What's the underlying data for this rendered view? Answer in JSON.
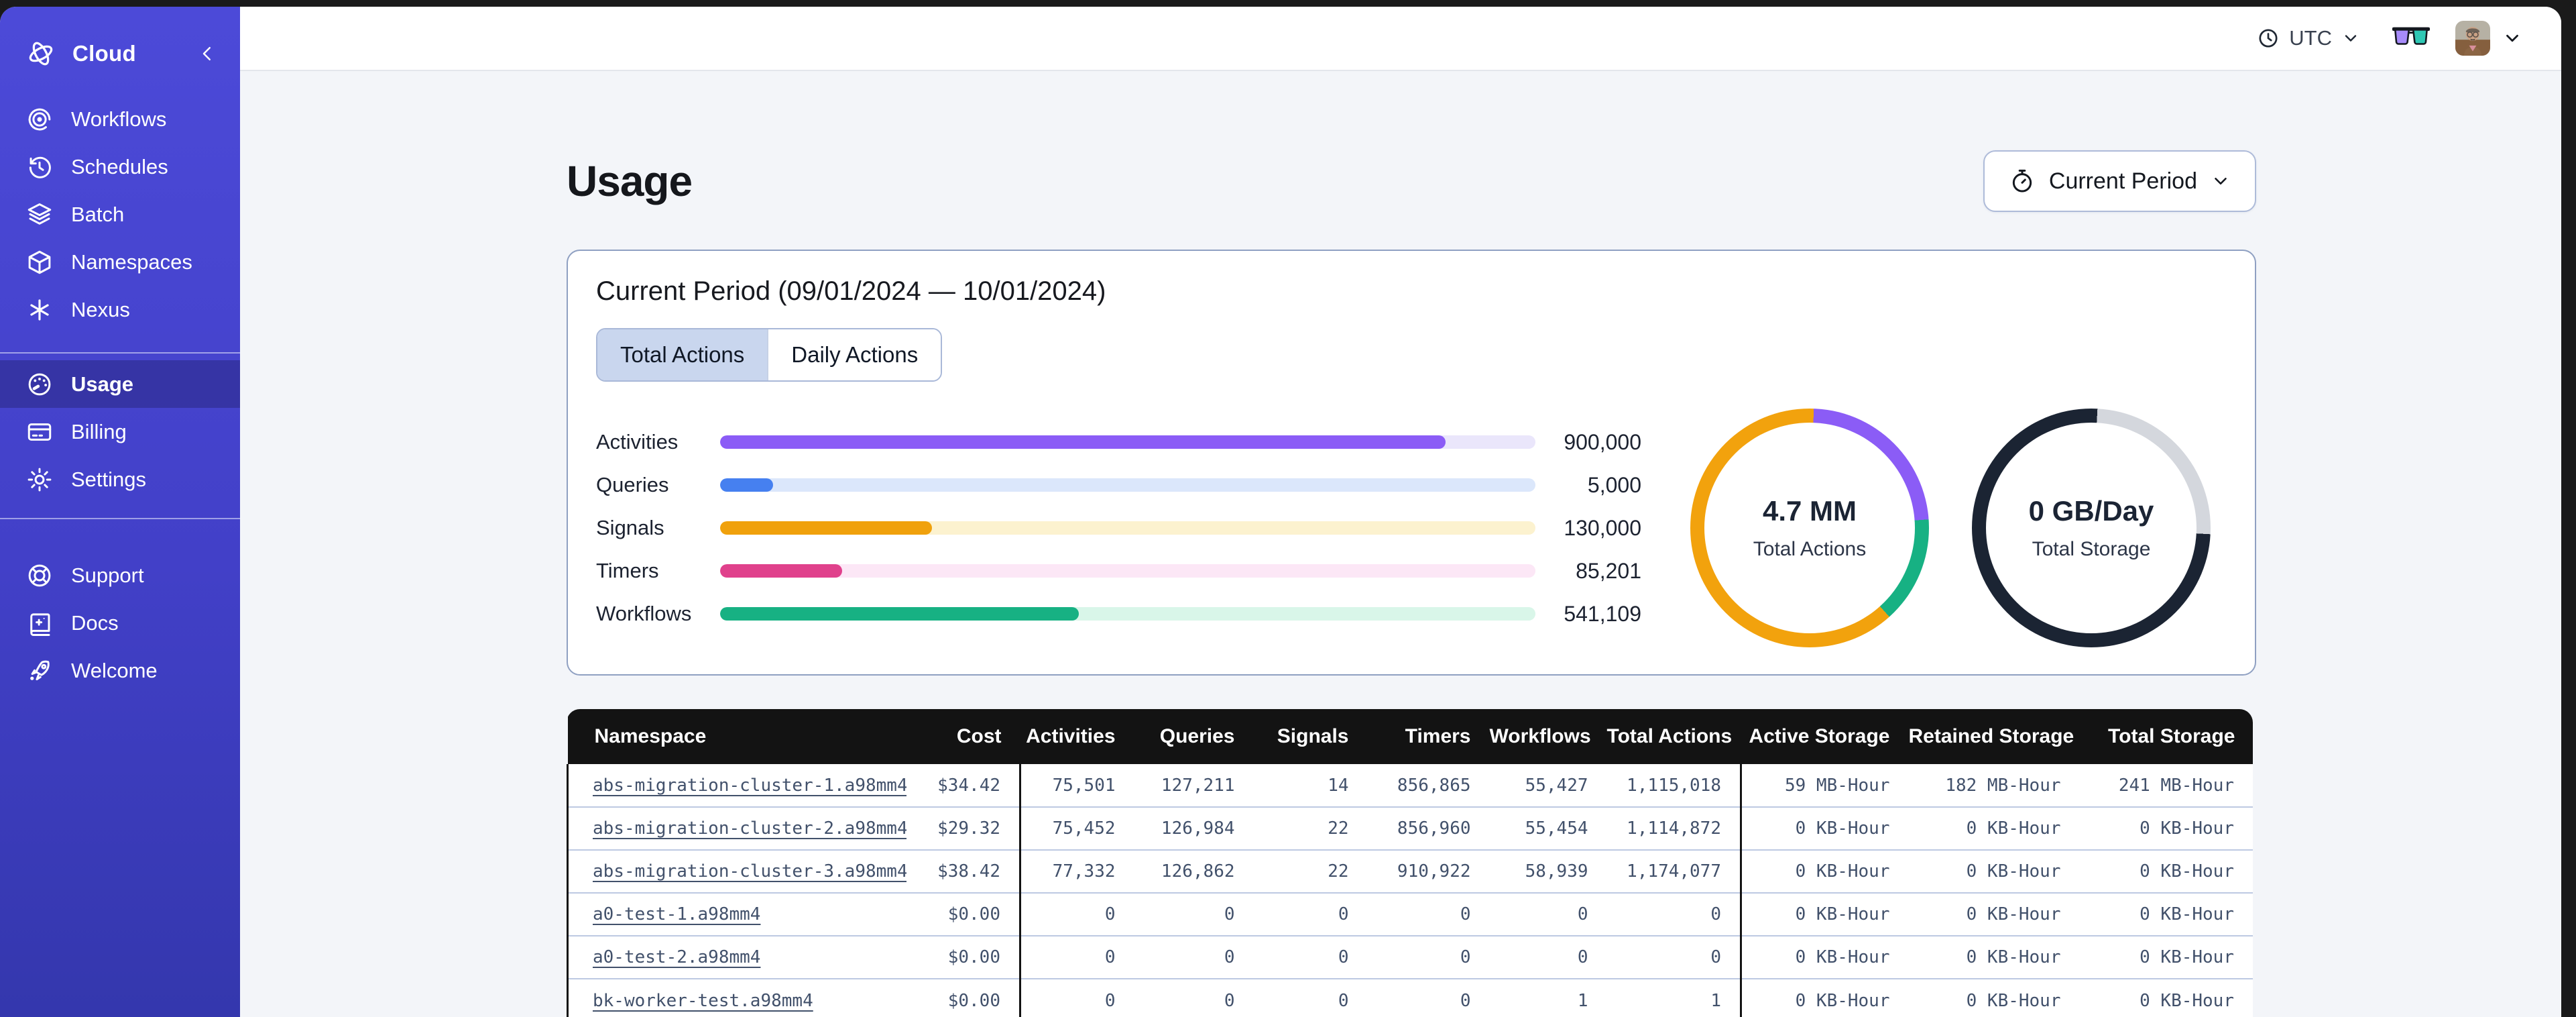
{
  "topbar": {
    "timezone": "UTC"
  },
  "sidebar": {
    "brand": {
      "label": "Cloud"
    },
    "items": [
      {
        "label": "Workflows"
      },
      {
        "label": "Schedules"
      },
      {
        "label": "Batch"
      },
      {
        "label": "Namespaces"
      },
      {
        "label": "Nexus"
      }
    ],
    "account_items": [
      {
        "label": "Usage",
        "active": true
      },
      {
        "label": "Billing"
      },
      {
        "label": "Settings"
      }
    ],
    "help_items": [
      {
        "label": "Support"
      },
      {
        "label": "Docs"
      },
      {
        "label": "Welcome"
      }
    ]
  },
  "page": {
    "title": "Usage",
    "period_selector": {
      "label": "Current Period"
    }
  },
  "usage_card": {
    "title": "Current Period (09/01/2024 — 10/01/2024)",
    "tabs": [
      {
        "label": "Total Actions",
        "selected": true
      },
      {
        "label": "Daily Actions",
        "selected": false
      }
    ]
  },
  "chart_data": [
    {
      "type": "bar",
      "title": "Usage by action type (current period)",
      "categories": [
        "Activities",
        "Queries",
        "Signals",
        "Timers",
        "Workflows"
      ],
      "values": [
        900000,
        5000,
        130000,
        85201,
        541109
      ],
      "value_labels": [
        "900,000",
        "5,000",
        "130,000",
        "85,201",
        "541,109"
      ],
      "fill_pct": [
        89,
        6.5,
        26,
        15,
        44
      ],
      "colors": [
        "#8b5cf6",
        "#4680f0",
        "#f0a10c",
        "#e0418c",
        "#17b183"
      ],
      "track_colors": [
        "#eae6fb",
        "#dbe7fb",
        "#fcf2cf",
        "#fce7f6",
        "#d9f6e9"
      ]
    },
    {
      "type": "pie",
      "center_value": "4.7 MM",
      "center_label": "Total Actions",
      "start_deg": 2,
      "segments": [
        {
          "name": "activities",
          "color": "#8b5cf6",
          "pct": 23.3
        },
        {
          "name": "workflows",
          "color": "#17b183",
          "pct": 14.5
        },
        {
          "name": "other-actions",
          "color": "#f2a20d",
          "pct": 62.2
        }
      ]
    },
    {
      "type": "pie",
      "center_value": "0 GB/Day",
      "center_label": "Total Storage",
      "start_deg": 3,
      "segments": [
        {
          "name": "available",
          "color": "#d4d7dd",
          "pct": 25
        },
        {
          "name": "used",
          "color": "#1b2433",
          "pct": 75
        }
      ]
    }
  ],
  "table": {
    "columns": [
      "Namespace",
      "Cost",
      "Activities",
      "Queries",
      "Signals",
      "Timers",
      "Workflows",
      "Total Actions",
      "Active Storage",
      "Retained Storage",
      "Total Storage"
    ],
    "rows": [
      [
        "abs-migration-cluster-1.a98mm4",
        "$34.42",
        "75,501",
        "127,211",
        "14",
        "856,865",
        "55,427",
        "1,115,018",
        "59 MB-Hour",
        "182 MB-Hour",
        "241 MB-Hour"
      ],
      [
        "abs-migration-cluster-2.a98mm4",
        "$29.32",
        "75,452",
        "126,984",
        "22",
        "856,960",
        "55,454",
        "1,114,872",
        "0 KB-Hour",
        "0 KB-Hour",
        "0 KB-Hour"
      ],
      [
        "abs-migration-cluster-3.a98mm4",
        "$38.42",
        "77,332",
        "126,862",
        "22",
        "910,922",
        "58,939",
        "1,174,077",
        "0 KB-Hour",
        "0 KB-Hour",
        "0 KB-Hour"
      ],
      [
        "a0-test-1.a98mm4",
        "$0.00",
        "0",
        "0",
        "0",
        "0",
        "0",
        "0",
        "0 KB-Hour",
        "0 KB-Hour",
        "0 KB-Hour"
      ],
      [
        "a0-test-2.a98mm4",
        "$0.00",
        "0",
        "0",
        "0",
        "0",
        "0",
        "0",
        "0 KB-Hour",
        "0 KB-Hour",
        "0 KB-Hour"
      ],
      [
        "bk-worker-test.a98mm4",
        "$0.00",
        "0",
        "0",
        "0",
        "0",
        "1",
        "1",
        "0 KB-Hour",
        "0 KB-Hour",
        "0 KB-Hour"
      ]
    ]
  }
}
